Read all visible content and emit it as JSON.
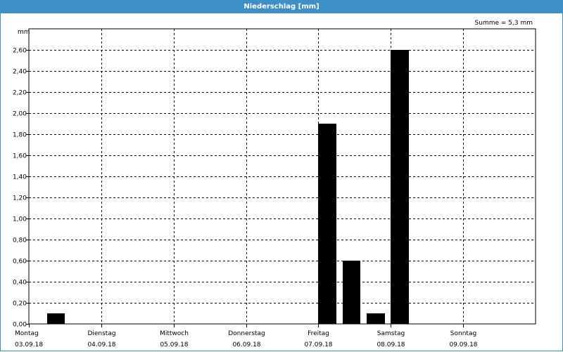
{
  "window": {
    "title": "Niederschlag [mm]"
  },
  "chart_data": {
    "type": "bar",
    "title": "Niederschlag [mm]",
    "summary": "Summe = 5,3 mm",
    "ylabel": "mm",
    "ylim": [
      0,
      2.8
    ],
    "y_ticks": [
      0,
      0.2,
      0.4,
      0.6,
      0.8,
      1.0,
      1.2,
      1.4,
      1.6,
      1.8,
      2.0,
      2.2,
      2.4,
      2.6
    ],
    "y_tick_labels": [
      "0,00",
      "0,20",
      "0,40",
      "0,60",
      "0,80",
      "1,00",
      "1,20",
      "1,40",
      "1,60",
      "1,80",
      "2,00",
      "2,20",
      "2,40",
      "2,60"
    ],
    "xlim": [
      "2018-09-03",
      "2018-09-10"
    ],
    "x_ticks": [
      {
        "day": "Montag",
        "date": "03.09.18"
      },
      {
        "day": "Dienstag",
        "date": "04.09.18"
      },
      {
        "day": "Mittwoch",
        "date": "05.09.18"
      },
      {
        "day": "Donnerstag",
        "date": "06.09.18"
      },
      {
        "day": "Freitag",
        "date": "07.09.18"
      },
      {
        "day": "Samstag",
        "date": "08.09.18"
      },
      {
        "day": "Sonntag",
        "date": "09.09.18"
      }
    ],
    "grid": true,
    "bar_color": "#000000",
    "bars": [
      {
        "date": "2018-09-03",
        "from_hour": 6,
        "to_hour": 12,
        "value": 0.1
      },
      {
        "date": "2018-09-07",
        "from_hour": 0,
        "to_hour": 6,
        "value": 1.9
      },
      {
        "date": "2018-09-07",
        "from_hour": 8,
        "to_hour": 14,
        "value": 0.6
      },
      {
        "date": "2018-09-07",
        "from_hour": 16,
        "to_hour": 22,
        "value": 0.1
      },
      {
        "date": "2018-09-08",
        "from_hour": 0,
        "to_hour": 6,
        "value": 2.6
      }
    ]
  }
}
